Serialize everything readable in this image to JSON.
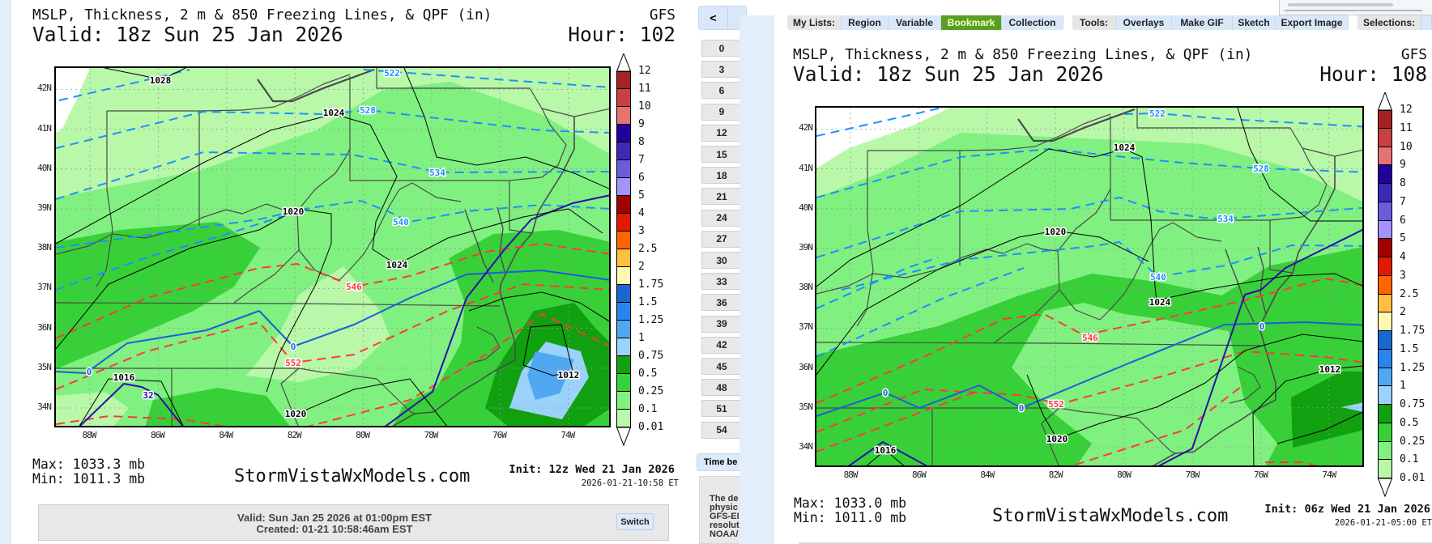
{
  "left_panel": {
    "title": "MSLP, Thickness, 2 m & 850 Freezing Lines, & QPF (in)",
    "model": "GFS",
    "valid": "Valid: 18z Sun 25 Jan 2026",
    "hour": "Hour: 102",
    "max": "Max: 1033.3 mb",
    "min": "Min: 1011.3 mb",
    "site": "StormVistaWxModels.com",
    "init": "Init: 12z Wed 21 Jan 2026",
    "timestamp": "2026-01-21-10:58 ET",
    "contour_labels": [
      "1028",
      "1024",
      "522",
      "528",
      "534",
      "1020",
      "540",
      "1024",
      "546",
      "0",
      "552",
      "0",
      "1016",
      "32",
      "1012",
      "1020"
    ]
  },
  "right_panel": {
    "title": "MSLP, Thickness, 2 m & 850 Freezing Lines, & QPF (in)",
    "model": "GFS",
    "valid": "Valid: 18z Sun 25 Jan 2026",
    "hour": "Hour: 108",
    "max": "Max: 1033.0 mb",
    "min": "Min: 1011.0 mb",
    "site": "StormVistaWxModels.com",
    "init": "Init: 06z Wed 21 Jan 2026",
    "timestamp": "2026-01-21-05:00 ET",
    "contour_labels": [
      "522",
      "1024",
      "528",
      "534",
      "1020",
      "540",
      "1024",
      "546",
      "0",
      "552",
      "0",
      "0",
      "1012",
      "1020",
      "1016"
    ]
  },
  "lat_labels": [
    "42N",
    "41N",
    "40N",
    "39N",
    "38N",
    "37N",
    "36N",
    "35N",
    "34N"
  ],
  "lon_labels": [
    "88W",
    "86W",
    "84W",
    "82W",
    "80W",
    "78W",
    "76W",
    "74W"
  ],
  "colorbar": {
    "labels": [
      "12",
      "11",
      "10",
      "9",
      "8",
      "7",
      "6",
      "5",
      "4",
      "3",
      "2.5",
      "2",
      "1.75",
      "1.5",
      "1.25",
      "1",
      "0.75",
      "0.5",
      "0.25",
      "0.1",
      "0.01"
    ],
    "colors": [
      "#a52222",
      "#c94040",
      "#e67272",
      "#22009e",
      "#3a2ab4",
      "#6c5cd8",
      "#a293ff",
      "#a10000",
      "#e01a00",
      "#ff6400",
      "#ffc040",
      "#fff8b0",
      "#1868d0",
      "#2a84ee",
      "#50a8f2",
      "#9ad2fa",
      "#10a010",
      "#38d038",
      "#80f080",
      "#b8f8a8"
    ]
  },
  "line_colors": {
    "thickness_cold": "#1e90ff",
    "thickness_warm": "#ff3a3a",
    "freezing_2m": "#1a60d8",
    "freezing_850": "#2a10a8",
    "isobar": "#000000"
  },
  "info_bar": {
    "valid": "Valid: Sun Jan 25 2026 at 01:00pm EST",
    "created": "Created: 01-21 10:58:46am EST",
    "switch": "Switch"
  },
  "toolbar": {
    "prev": "<",
    "my_lists": "My Lists:",
    "region": "Region",
    "variable": "Variable",
    "bookmark": "Bookmark",
    "collection": "Collection",
    "tools": "Tools:",
    "overlays": "Overlays",
    "make_gif": "Make GIF",
    "sketch": "Sketch",
    "export_image": "Export Image",
    "selections": "Selections:"
  },
  "hour_buttons": [
    "0",
    "3",
    "6",
    "9",
    "12",
    "15",
    "18",
    "21",
    "24",
    "27",
    "30",
    "33",
    "36",
    "39",
    "42",
    "45",
    "48",
    "51",
    "54"
  ],
  "time_between": "Time be",
  "description_lines": [
    "The de",
    "physic",
    "GFS-EI",
    "resolut",
    "NOAA/"
  ]
}
